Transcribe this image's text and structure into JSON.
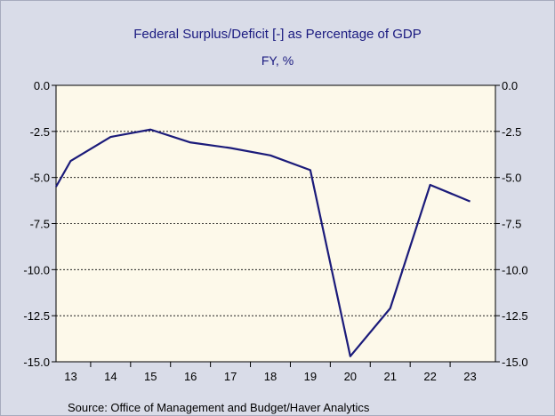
{
  "chart_data": {
    "type": "line",
    "title": "Federal Surplus/Deficit [-] as Percentage of GDP",
    "subtitle": "FY, %",
    "source": "Source:  Office of Management and Budget/Haver Analytics",
    "x": [
      "13",
      "14",
      "15",
      "16",
      "17",
      "18",
      "19",
      "20",
      "21",
      "22",
      "23"
    ],
    "xlabels": [
      "13",
      "14",
      "15",
      "16",
      "17",
      "18",
      "19",
      "20",
      "21",
      "22",
      "23"
    ],
    "series": [
      {
        "values": [
          -4.1,
          -2.8,
          -2.4,
          -3.1,
          -3.4,
          -3.8,
          -4.6,
          -14.7,
          -12.1,
          -5.4,
          -6.3
        ]
      }
    ],
    "ylim": [
      -15.0,
      0.0
    ],
    "yticks": [
      "0.0",
      "-2.5",
      "-5.0",
      "-7.5",
      "-10.0",
      "-12.5",
      "-15.0"
    ],
    "ytick_values": [
      0,
      -2.5,
      -5.0,
      -7.5,
      -10.0,
      -12.5,
      -15.0
    ],
    "grid": true,
    "line_color": "#1b1b7a",
    "plot_bg": "#fdf9ea"
  }
}
